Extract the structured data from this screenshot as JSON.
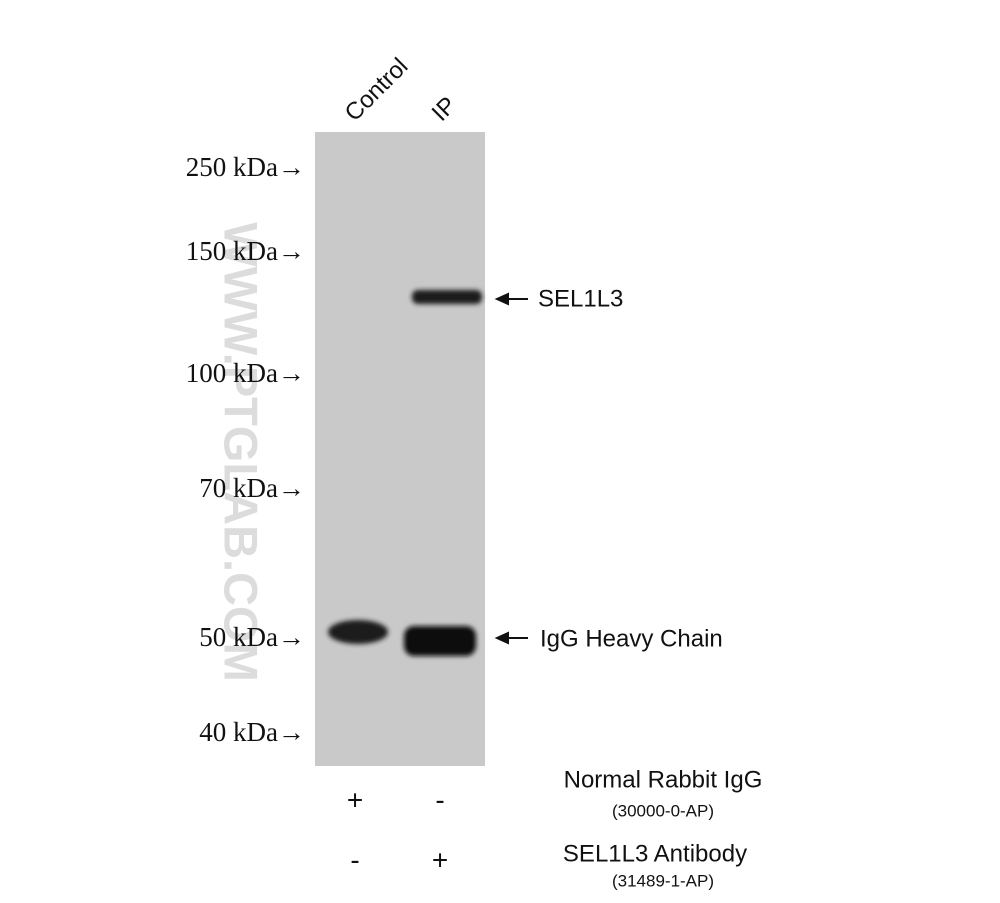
{
  "watermark": "WWW.PTGLAB.COM",
  "lanes": [
    "Control",
    "IP"
  ],
  "markers": [
    "250 kDa→",
    "150 kDa→",
    "100 kDa→",
    "70 kDa→",
    "50 kDa→",
    "40 kDa→"
  ],
  "bands": [
    "SEL1L3",
    "IgG Heavy Chain"
  ],
  "treatments": [
    {
      "name": "Normal Rabbit IgG",
      "catalog": "(30000-0-AP)",
      "signs": [
        "+",
        "-"
      ]
    },
    {
      "name": "SEL1L3 Antibody",
      "catalog": "(31489-1-AP)",
      "signs": [
        "-",
        "+"
      ]
    }
  ]
}
